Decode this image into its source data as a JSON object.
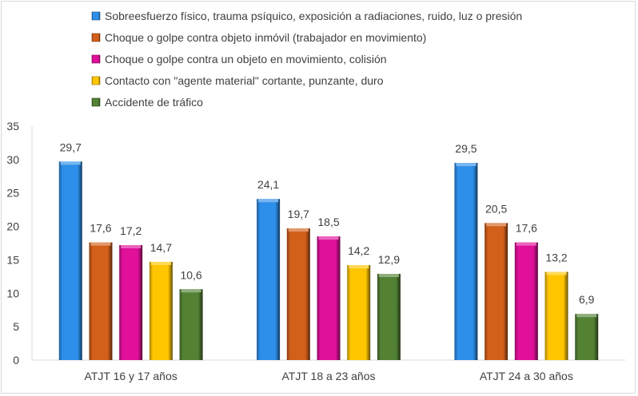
{
  "chart_data": {
    "type": "bar",
    "title": "",
    "xlabel": "",
    "ylabel": "",
    "ylim": [
      0,
      35
    ],
    "yticks": [
      "0",
      "5",
      "10",
      "15",
      "20",
      "25",
      "30",
      "35"
    ],
    "grid": false,
    "legend_position": "top",
    "categories": [
      "ATJT 16 y 17 años",
      "ATJT 18 a 23 años",
      "ATJT 24 a 30 años"
    ],
    "series": [
      {
        "name": "Sobreesfuerzo físico, trauma psíquico, exposición a radiaciones, ruido, luz o presión",
        "color": "#2E8FEA",
        "values": [
          29.7,
          24.1,
          29.5
        ],
        "labels": [
          "29,7",
          "24,1",
          "29,5"
        ]
      },
      {
        "name": "Choque o golpe contra objeto inmóvil  (trabajador en movimiento)",
        "color": "#D2601A",
        "values": [
          17.6,
          19.7,
          20.5
        ],
        "labels": [
          "17,6",
          "19,7",
          "20,5"
        ]
      },
      {
        "name": "Choque o golpe contra un objeto en movimiento, colisión",
        "color": "#E0109A",
        "values": [
          17.2,
          18.5,
          17.6
        ],
        "labels": [
          "17,2",
          "18,5",
          "17,6"
        ]
      },
      {
        "name": "Contacto con \"agente material\" cortante, punzante, duro",
        "color": "#FFC600",
        "values": [
          14.7,
          14.2,
          13.2
        ],
        "labels": [
          "14,7",
          "14,2",
          "13,2"
        ]
      },
      {
        "name": "Accidente de tráfico",
        "color": "#548235",
        "values": [
          10.6,
          12.9,
          6.9
        ],
        "labels": [
          "10,6",
          "12,9",
          "6,9"
        ]
      }
    ]
  }
}
